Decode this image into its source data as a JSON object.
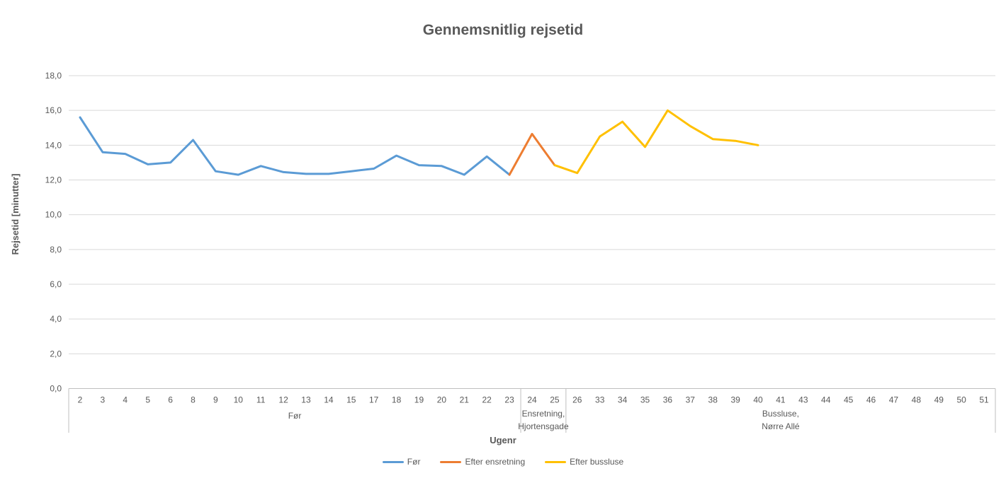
{
  "chart_data": {
    "type": "line",
    "title": "Gennemsnitlig rejsetid",
    "xlabel": "Ugenr",
    "ylabel": "Rejsetid [minutter]",
    "ylim": [
      0,
      18
    ],
    "grid_step": 2,
    "grid_on": true,
    "yticks": [
      "0,0",
      "2,0",
      "4,0",
      "6,0",
      "8,0",
      "10,0",
      "12,0",
      "14,0",
      "16,0",
      "18,0"
    ],
    "categories": [
      "2",
      "3",
      "4",
      "5",
      "6",
      "8",
      "9",
      "10",
      "11",
      "12",
      "13",
      "14",
      "15",
      "17",
      "18",
      "19",
      "20",
      "21",
      "22",
      "23",
      "24",
      "25",
      "26",
      "33",
      "34",
      "35",
      "36",
      "37",
      "38",
      "39",
      "40",
      "41",
      "43",
      "44",
      "45",
      "46",
      "47",
      "48",
      "49",
      "50",
      "51"
    ],
    "category_groups": [
      {
        "label_lines": [
          "Før"
        ],
        "from": "2",
        "to": "23"
      },
      {
        "label_lines": [
          "Ensretning,",
          "Hjortensgade"
        ],
        "from": "24",
        "to": "25"
      },
      {
        "label_lines": [
          "Bussluse,",
          "Nørre Allé"
        ],
        "from": "26",
        "to": "51"
      }
    ],
    "series": [
      {
        "name": "Før",
        "color": "#5B9BD5",
        "x": [
          "2",
          "3",
          "4",
          "5",
          "6",
          "8",
          "9",
          "10",
          "11",
          "12",
          "13",
          "14",
          "15",
          "17",
          "18",
          "19",
          "20",
          "21",
          "22",
          "23"
        ],
        "values": [
          15.6,
          13.6,
          13.5,
          12.9,
          13.0,
          14.3,
          12.5,
          12.3,
          12.8,
          12.45,
          12.35,
          12.35,
          12.5,
          12.65,
          13.4,
          12.85,
          12.8,
          12.3,
          13.35,
          12.3
        ]
      },
      {
        "name": "Efter ensretning",
        "color": "#ED7D31",
        "x": [
          "23",
          "24",
          "25"
        ],
        "values": [
          12.3,
          14.65,
          12.85
        ]
      },
      {
        "name": "Efter bussluse",
        "color": "#FFC000",
        "x": [
          "25",
          "26",
          "33",
          "34",
          "35",
          "36",
          "37",
          "38",
          "39",
          "40"
        ],
        "values": [
          12.85,
          12.4,
          14.5,
          15.35,
          13.9,
          16.0,
          15.1,
          14.35,
          14.25,
          14.0
        ]
      }
    ],
    "legend": {
      "position": "bottom-center",
      "entries": [
        {
          "label": "Før",
          "color": "#5B9BD5"
        },
        {
          "label": "Efter ensretning",
          "color": "#ED7D31"
        },
        {
          "label": "Efter bussluse",
          "color": "#FFC000"
        }
      ]
    },
    "colors": {
      "text": "#595959",
      "gridline": "#D9D9D9",
      "axis_line": "#BFBFBF",
      "background": "#FFFFFF"
    }
  }
}
